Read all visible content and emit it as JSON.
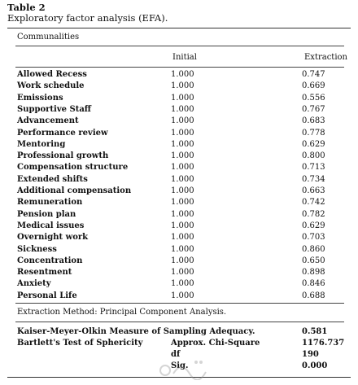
{
  "caption": {
    "label": "Table 2",
    "title": "Exploratory factor analysis (EFA)."
  },
  "table": {
    "section_title": "Communalities",
    "columns": [
      "Initial",
      "Extraction"
    ],
    "rows": [
      {
        "name": "Allowed Recess",
        "initial": "1.000",
        "extraction": "0.747"
      },
      {
        "name": "Work schedule",
        "initial": "1.000",
        "extraction": "0.669"
      },
      {
        "name": "Emissions",
        "initial": "1.000",
        "extraction": "0.556"
      },
      {
        "name": "Supportive Staff",
        "initial": "1.000",
        "extraction": "0.767"
      },
      {
        "name": "Advancement",
        "initial": "1.000",
        "extraction": "0.683"
      },
      {
        "name": "Performance review",
        "initial": "1.000",
        "extraction": "0.778"
      },
      {
        "name": "Mentoring",
        "initial": "1.000",
        "extraction": "0.629"
      },
      {
        "name": "Professional growth",
        "initial": "1.000",
        "extraction": "0.800"
      },
      {
        "name": "Compensation structure",
        "initial": "1.000",
        "extraction": "0.713"
      },
      {
        "name": "Extended shifts",
        "initial": "1.000",
        "extraction": "0.734"
      },
      {
        "name": "Additional compensation",
        "initial": "1.000",
        "extraction": "0.663"
      },
      {
        "name": "Remuneration",
        "initial": "1.000",
        "extraction": "0.742"
      },
      {
        "name": "Pension plan",
        "initial": "1.000",
        "extraction": "0.782"
      },
      {
        "name": "Medical issues",
        "initial": "1.000",
        "extraction": "0.629"
      },
      {
        "name": "Overnight work",
        "initial": "1.000",
        "extraction": "0.703"
      },
      {
        "name": "Sickness",
        "initial": "1.000",
        "extraction": "0.860"
      },
      {
        "name": "Concentration",
        "initial": "1.000",
        "extraction": "0.650"
      },
      {
        "name": "Resentment",
        "initial": "1.000",
        "extraction": "0.898"
      },
      {
        "name": "Anxiety",
        "initial": "1.000",
        "extraction": "0.846"
      },
      {
        "name": "Personal Life",
        "initial": "1.000",
        "extraction": "0.688"
      }
    ],
    "footnote": "Extraction Method: Principal Component Analysis."
  },
  "stats": {
    "kmo_label": "Kaiser-Meyer-Olkin Measure of Sampling Adequacy.",
    "kmo_value": "0.581",
    "bartlett_label": "Bartlett's Test of Sphericity",
    "chi_label": "Approx. Chi-Square",
    "chi_value": "1176.737",
    "df_label": "df",
    "df_value": "190",
    "sig_label": "Sig.",
    "sig_value": "0.000"
  }
}
